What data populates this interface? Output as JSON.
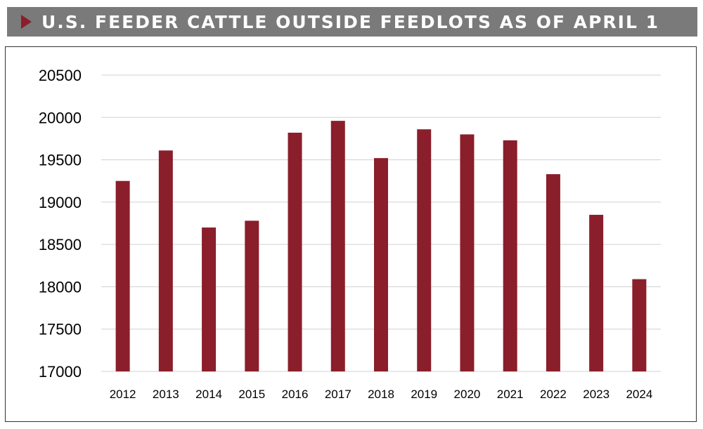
{
  "header": {
    "title": "U.S. FEEDER CATTLE OUTSIDE FEEDLOTS AS OF APRIL 1",
    "arrow_icon": "triangle-right-icon"
  },
  "colors": {
    "bar": "#8b1e2b",
    "title_bar": "#7a7a7a",
    "grid": "#d0d0d0"
  },
  "chart_data": {
    "type": "bar",
    "title": "U.S. FEEDER CATTLE OUTSIDE FEEDLOTS AS OF APRIL 1",
    "xlabel": "",
    "ylabel": "",
    "categories": [
      "2012",
      "2013",
      "2014",
      "2015",
      "2016",
      "2017",
      "2018",
      "2019",
      "2020",
      "2021",
      "2022",
      "2023",
      "2024"
    ],
    "values": [
      19250,
      19610,
      18700,
      18780,
      19820,
      19960,
      19520,
      19860,
      19800,
      19730,
      19330,
      18850,
      18090
    ],
    "ylim": [
      17000,
      20500
    ],
    "yticks": [
      17000,
      17500,
      18000,
      18500,
      19000,
      19500,
      20000,
      20500
    ],
    "grid": true,
    "legend": "none"
  }
}
